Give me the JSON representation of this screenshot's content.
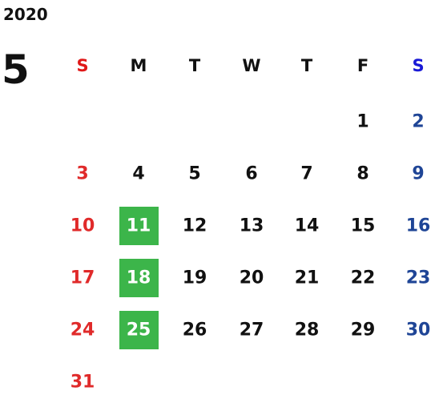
{
  "year": "2020",
  "month": "5",
  "weekdays": [
    "S",
    "M",
    "T",
    "W",
    "T",
    "F",
    "S"
  ],
  "weeks": [
    [
      null,
      null,
      null,
      null,
      null,
      1,
      2
    ],
    [
      3,
      4,
      5,
      6,
      7,
      8,
      9
    ],
    [
      10,
      11,
      12,
      13,
      14,
      15,
      16
    ],
    [
      17,
      18,
      19,
      20,
      21,
      22,
      23
    ],
    [
      24,
      25,
      26,
      27,
      28,
      29,
      30
    ],
    [
      31,
      null,
      null,
      null,
      null,
      null,
      null
    ]
  ],
  "highlighted_days": [
    11,
    18,
    25
  ],
  "colors": {
    "text": "#111111",
    "sunday": "#e02a2a",
    "saturday": "#1f4596",
    "saturday_header": "#1a1ad6",
    "sunday_header": "#e01818",
    "highlight": "#3cb54a",
    "highlight_text": "#ffffff"
  }
}
